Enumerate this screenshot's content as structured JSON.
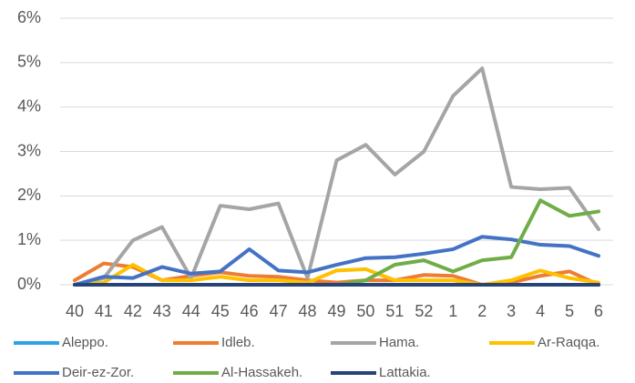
{
  "chart_data": {
    "type": "line",
    "categories": [
      "40",
      "41",
      "42",
      "43",
      "44",
      "45",
      "46",
      "47",
      "48",
      "49",
      "50",
      "51",
      "52",
      "1",
      "2",
      "3",
      "4",
      "5",
      "6"
    ],
    "series": [
      {
        "name": "Aleppo.",
        "color": "#2ea3e6",
        "values": [
          0,
          0,
          0,
          0,
          0,
          0,
          0,
          0,
          0,
          0,
          0,
          0,
          0,
          0,
          0,
          0,
          0,
          0,
          0
        ]
      },
      {
        "name": "Idleb.",
        "color": "#ed7d31",
        "values": [
          0.1,
          0.48,
          0.4,
          0.1,
          0.2,
          0.28,
          0.2,
          0.18,
          0.1,
          0.05,
          0.1,
          0.1,
          0.22,
          0.2,
          0,
          0.05,
          0.2,
          0.3,
          0
        ]
      },
      {
        "name": "Hama.",
        "color": "#a5a5a5",
        "values": [
          0,
          0.15,
          1.0,
          1.3,
          0.15,
          1.78,
          1.7,
          1.83,
          0.15,
          2.8,
          3.15,
          2.48,
          3.0,
          4.25,
          4.87,
          2.2,
          2.15,
          2.18,
          1.25
        ]
      },
      {
        "name": "Ar-Raqqa.",
        "color": "#ffc000",
        "values": [
          0,
          0.05,
          0.45,
          0.1,
          0.1,
          0.18,
          0.1,
          0.1,
          0.05,
          0.32,
          0.35,
          0.1,
          0.1,
          0.1,
          0,
          0.1,
          0.32,
          0.15,
          0.05
        ]
      },
      {
        "name": "Deir-ez-Zor.",
        "color": "#4472c4",
        "values": [
          0,
          0.18,
          0.15,
          0.4,
          0.25,
          0.3,
          0.8,
          0.32,
          0.28,
          0.45,
          0.6,
          0.62,
          0.7,
          0.8,
          1.08,
          1.02,
          0.9,
          0.87,
          0.65
        ]
      },
      {
        "name": "Al-Hassakeh.",
        "color": "#70ad47",
        "values": [
          0,
          0,
          0,
          0,
          0,
          0,
          0,
          0,
          0,
          0,
          0.1,
          0.45,
          0.55,
          0.3,
          0.55,
          0.62,
          1.9,
          1.55,
          1.65
        ]
      },
      {
        "name": "Lattakia.",
        "color": "#264478",
        "values": [
          0,
          0,
          0,
          0,
          0,
          0,
          0,
          0,
          0,
          0,
          0,
          0,
          0,
          0,
          0,
          0,
          0,
          0,
          0
        ]
      }
    ],
    "ylim": [
      0,
      6
    ],
    "yticks": [
      {
        "value": 0,
        "label": "0%"
      },
      {
        "value": 1,
        "label": "1%"
      },
      {
        "value": 2,
        "label": "2%"
      },
      {
        "value": 3,
        "label": "3%"
      },
      {
        "value": 4,
        "label": "4%"
      },
      {
        "value": 5,
        "label": "5%"
      },
      {
        "value": 6,
        "label": "6%"
      }
    ],
    "grid": true,
    "legend": "bottom"
  }
}
